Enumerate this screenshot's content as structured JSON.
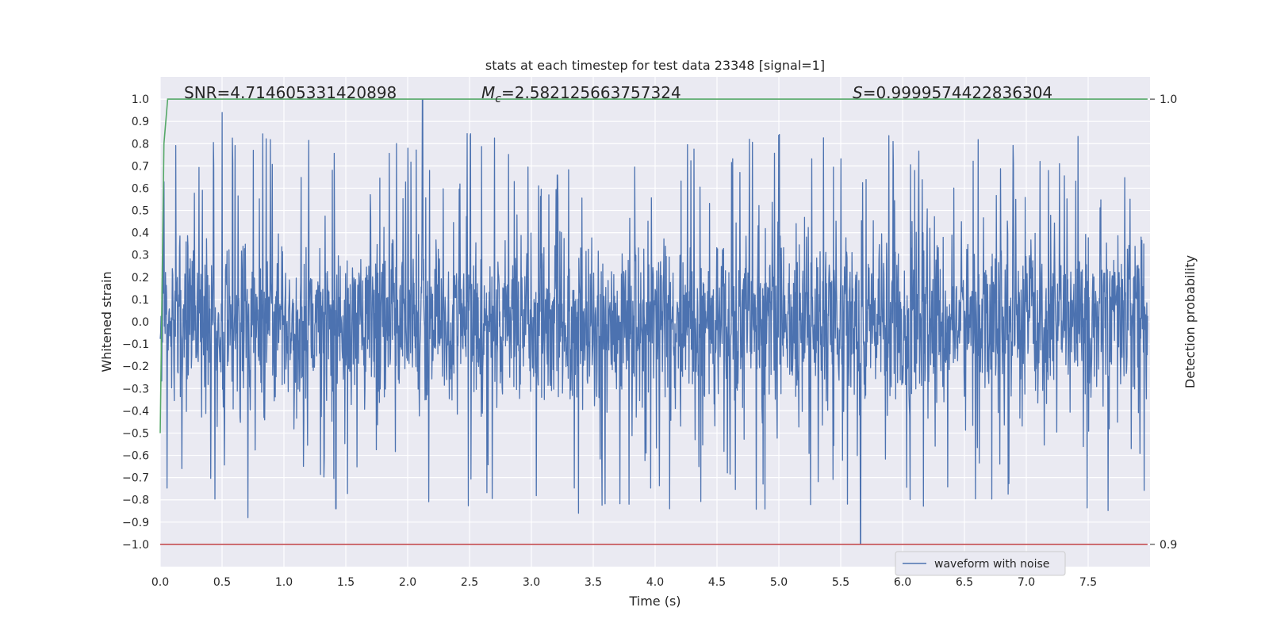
{
  "chart_data": {
    "type": "line",
    "title": "stats at each timestep for test data 23348 [signal=1]",
    "xlabel": "Time (s)",
    "ylabel": "Whitened strain",
    "y2label": "Detection probability",
    "xlim": [
      0.0,
      8.0
    ],
    "ylim": [
      -1.1,
      1.1
    ],
    "y2lim": [
      0.9,
      1.0
    ],
    "x_ticks": [
      "0.0",
      "0.5",
      "1.0",
      "1.5",
      "2.0",
      "2.5",
      "3.0",
      "3.5",
      "4.0",
      "4.5",
      "5.0",
      "5.5",
      "6.0",
      "6.5",
      "7.0",
      "7.5"
    ],
    "y_ticks": [
      "1.0",
      "0.9",
      "0.8",
      "0.7",
      "0.6",
      "0.5",
      "0.4",
      "0.3",
      "0.2",
      "0.1",
      "0.0",
      "−0.1",
      "−0.2",
      "−0.3",
      "−0.4",
      "−0.5",
      "−0.6",
      "−0.7",
      "−0.8",
      "−0.9",
      "−1.0"
    ],
    "y2_ticks": [
      "1.0",
      "0.9"
    ],
    "grid": true,
    "legend": {
      "position": "lower-center-right",
      "entries": [
        "waveform with noise"
      ]
    },
    "annotations": {
      "snr": "SNR=4.714605331420898",
      "mc_symbol": "M",
      "mc_sub": "c",
      "mc_value": "=2.582125663757324",
      "s_symbol": "S",
      "s_value": "=0.9999574422836304"
    },
    "series": [
      {
        "name": "waveform with noise",
        "color": "#4c72b0",
        "description": "whitened noisy strain, roughly zero-mean noise spanning about -1.0 to 1.0",
        "peaks": [
          [
            0.5,
            0.94
          ],
          [
            2.12,
            1.0
          ],
          [
            5.66,
            -1.0
          ],
          [
            1.42,
            -0.84
          ],
          [
            3.38,
            -0.86
          ],
          [
            0.71,
            -0.88
          ]
        ]
      },
      {
        "color": "#55a868",
        "x": [
          0.0,
          0.03,
          0.06,
          8.0
        ],
        "y": [
          0.925,
          0.99,
          1.0,
          1.0
        ]
      },
      {
        "color": "#c44e52",
        "x": [
          0.0,
          8.0
        ],
        "y": [
          0.9,
          0.9
        ]
      }
    ],
    "colors": {
      "background": "#eaeaf2",
      "grid": "#ffffff",
      "waveform": "#4c72b0",
      "probability": "#55a868",
      "threshold": "#c44e52"
    }
  }
}
